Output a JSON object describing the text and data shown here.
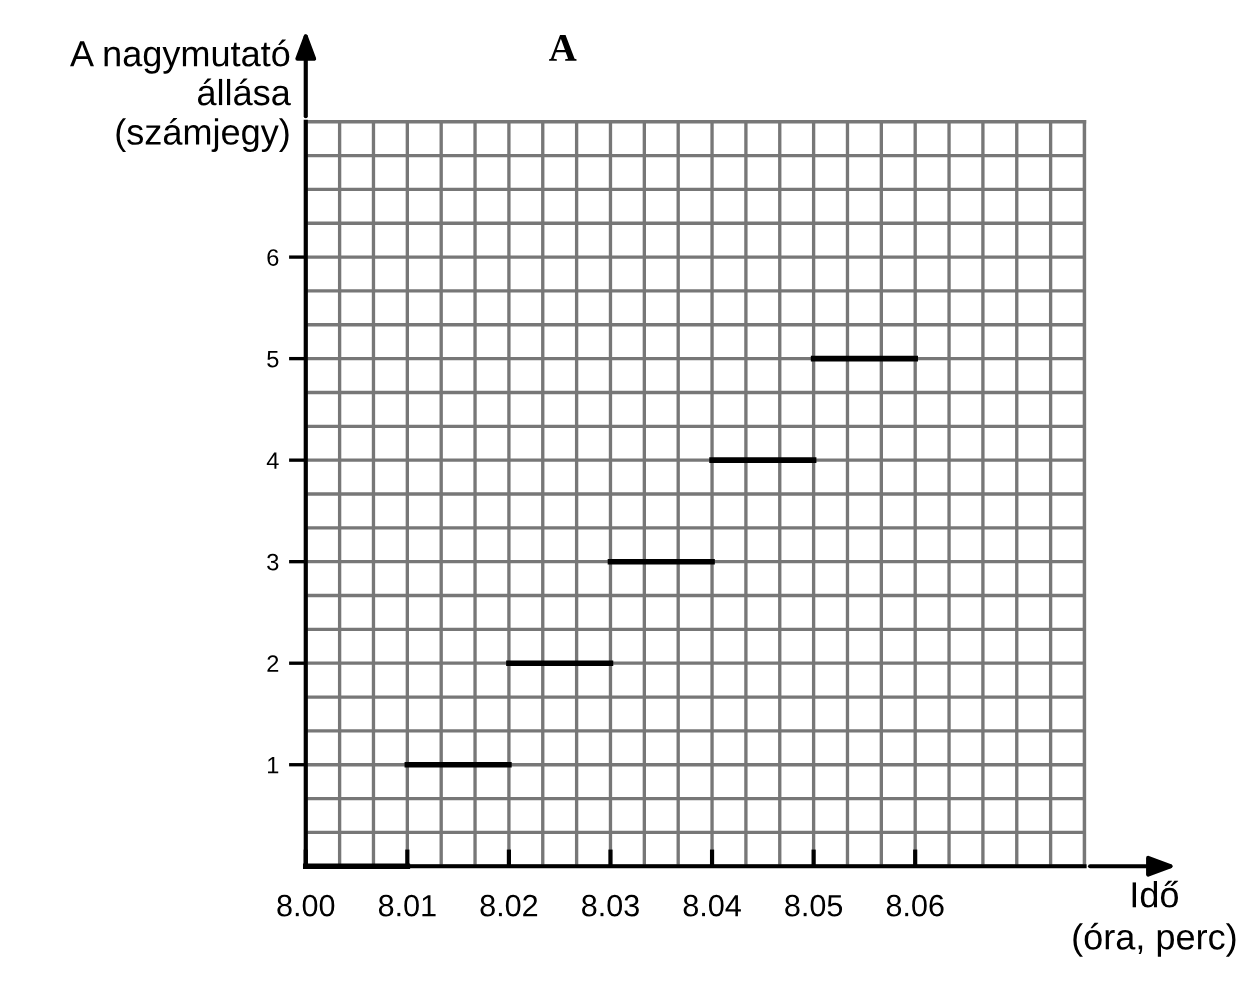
{
  "chart_data": {
    "type": "line",
    "title": "A",
    "ylabel": "A nagymutató\nállása\n(számjegy)",
    "xlabel": "Idő\n(óra, perc)",
    "series": [
      {
        "color": "#000000",
        "x": [
          8.0,
          8.01
        ],
        "values": [
          0,
          0
        ]
      },
      {
        "color": "#000000",
        "x": [
          8.01,
          8.02
        ],
        "values": [
          1,
          1
        ]
      },
      {
        "color": "#000000",
        "x": [
          8.02,
          8.03
        ],
        "values": [
          2,
          2
        ]
      },
      {
        "color": "#000000",
        "x": [
          8.03,
          8.04
        ],
        "values": [
          3,
          3
        ]
      },
      {
        "color": "#000000",
        "x": [
          8.04,
          8.05
        ],
        "values": [
          4,
          4
        ]
      },
      {
        "color": "#000000",
        "x": [
          8.05,
          8.06
        ],
        "values": [
          5,
          5
        ]
      }
    ],
    "xlim": [
      8.0,
      8.07667
    ],
    "ylim": [
      0,
      7.333
    ],
    "xticks": [
      {
        "value": 8.0,
        "label": "8.00"
      },
      {
        "value": 8.01,
        "label": "8.01"
      },
      {
        "value": 8.02,
        "label": "8.02"
      },
      {
        "value": 8.03,
        "label": "8.03"
      },
      {
        "value": 8.04,
        "label": "8.04"
      },
      {
        "value": 8.05,
        "label": "8.05"
      },
      {
        "value": 8.06,
        "label": "8.06"
      }
    ],
    "yticks": [
      1,
      2,
      3,
      4,
      5,
      6
    ],
    "grid": true,
    "marker": "none",
    "line_style": "solid"
  }
}
